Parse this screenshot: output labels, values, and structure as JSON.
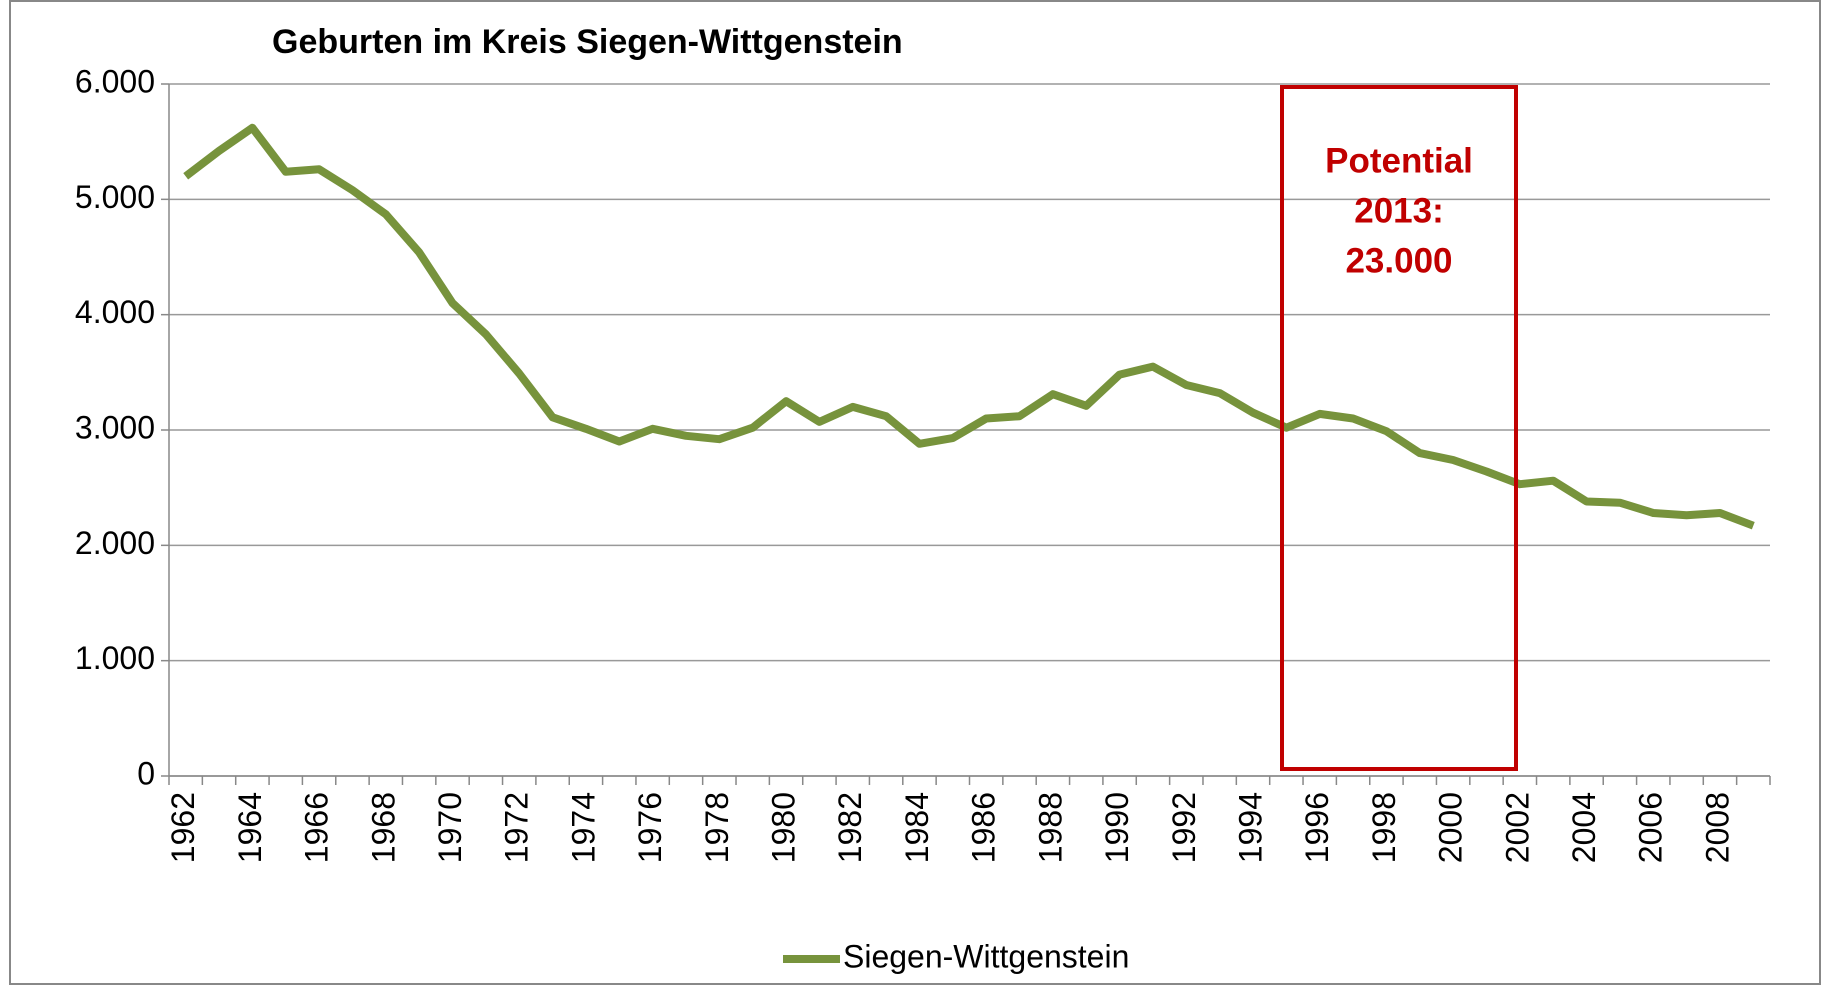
{
  "chart_data": {
    "type": "line",
    "title": "Geburten im Kreis Siegen-Wittgenstein",
    "categories": [
      "1962",
      null,
      "1964",
      null,
      "1966",
      null,
      "1968",
      null,
      "1970",
      null,
      "1972",
      null,
      "1974",
      null,
      "1976",
      null,
      "1978",
      null,
      "1980",
      null,
      "1982",
      null,
      "1984",
      null,
      "1986",
      null,
      "1988",
      null,
      "1990",
      null,
      "1992",
      null,
      "1994",
      null,
      "1996",
      null,
      "1998",
      null,
      "2000",
      null,
      "2002",
      null,
      "2004",
      null,
      "2006",
      null,
      "2008",
      null
    ],
    "series": [
      {
        "name": "Siegen-Wittgenstein",
        "color": "#77933c",
        "values": [
          5200,
          5420,
          5620,
          5240,
          5260,
          5080,
          4870,
          4540,
          4100,
          3830,
          3490,
          3110,
          3010,
          2900,
          3010,
          2950,
          2920,
          3020,
          3250,
          3070,
          3200,
          3120,
          2880,
          2930,
          3100,
          3120,
          3310,
          3210,
          3480,
          3550,
          3390,
          3320,
          3150,
          3020,
          3140,
          3100,
          2990,
          2800,
          2740,
          2640,
          2530,
          2560,
          2380,
          2370,
          2280,
          2260,
          2280,
          2170
        ]
      }
    ],
    "ylim": [
      0,
      6000
    ],
    "yticks": [
      0,
      {
        "value": 1000,
        "label": "1.000"
      },
      {
        "value": 2000,
        "label": "2.000"
      },
      {
        "value": 3000,
        "label": "3.000"
      },
      {
        "value": 4000,
        "label": "4.000"
      },
      {
        "value": 5000,
        "label": "5.000"
      },
      {
        "value": 6000,
        "label": "6.000"
      }
    ],
    "grid": true,
    "legend": "bottom",
    "annotation": [
      "Potential",
      "2013:",
      "23.000"
    ],
    "annotation_color": "#c00000"
  }
}
